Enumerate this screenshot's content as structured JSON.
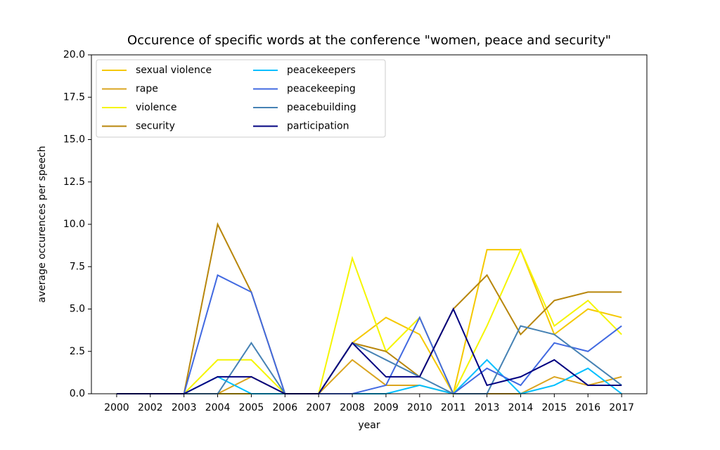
{
  "chart_data": {
    "type": "line",
    "title": "Occurence of specific words at the conference \"women, peace and security\"",
    "x_label": "year",
    "y_label": "average occurences per speech",
    "categories": [
      "2000",
      "2002",
      "2003",
      "2004",
      "2005",
      "2006",
      "2007",
      "2008",
      "2009",
      "2010",
      "2011",
      "2013",
      "2014",
      "2015",
      "2016",
      "2017"
    ],
    "ylim": [
      0,
      20
    ],
    "yticks": [
      {
        "value": 0,
        "label": "0.0"
      },
      2.5,
      {
        "value": 5,
        "label": "5.0"
      },
      7.5,
      {
        "value": 10,
        "label": "10.0"
      },
      12.5,
      {
        "value": 15,
        "label": "15.0"
      },
      17.5,
      {
        "value": 20,
        "label": "20.0"
      }
    ],
    "legend": "upper left",
    "series": [
      {
        "name": "sexual violence",
        "color": "#f5c800",
        "values": [
          0,
          0,
          0,
          0,
          0,
          0,
          0,
          3,
          4.5,
          3.5,
          0,
          8.5,
          8.5,
          3.5,
          5,
          4.5
        ]
      },
      {
        "name": "rape",
        "color": "#daa520",
        "values": [
          0,
          0,
          0,
          0,
          1,
          0,
          0,
          2,
          0.5,
          0.5,
          0,
          0,
          0,
          1,
          0.5,
          1
        ]
      },
      {
        "name": "violence",
        "color": "#f5f500",
        "values": [
          0,
          0,
          0,
          2,
          2,
          0,
          0,
          8,
          2.5,
          4.5,
          0,
          4,
          8.5,
          4,
          5.5,
          3.5
        ]
      },
      {
        "name": "security",
        "color": "#b8860b",
        "values": [
          0,
          0,
          0,
          10,
          6,
          0,
          0,
          3,
          2.5,
          1,
          5,
          7,
          3.5,
          5.5,
          6,
          6
        ]
      },
      {
        "name": "peacekeepers",
        "color": "#00bfff",
        "values": [
          0,
          0,
          0,
          1,
          0,
          0,
          0,
          0,
          0,
          0.5,
          0,
          2,
          0,
          0.5,
          1.5,
          0
        ]
      },
      {
        "name": "peacekeeping",
        "color": "#4169e1",
        "values": [
          0,
          0,
          0,
          7,
          6,
          0,
          0,
          0,
          0.5,
          4.5,
          0,
          1.5,
          0.5,
          3,
          2.5,
          4
        ]
      },
      {
        "name": "peacebuilding",
        "color": "#4682b4",
        "values": [
          0,
          0,
          0,
          0,
          3,
          0,
          0,
          3,
          2,
          1,
          0,
          0,
          4,
          3.5,
          2,
          0.5
        ]
      },
      {
        "name": "participation",
        "color": "#000080",
        "values": [
          0,
          0,
          0,
          1,
          1,
          0,
          0,
          3,
          1,
          1,
          5,
          0.5,
          1,
          2,
          0.5,
          0.5
        ]
      }
    ]
  }
}
